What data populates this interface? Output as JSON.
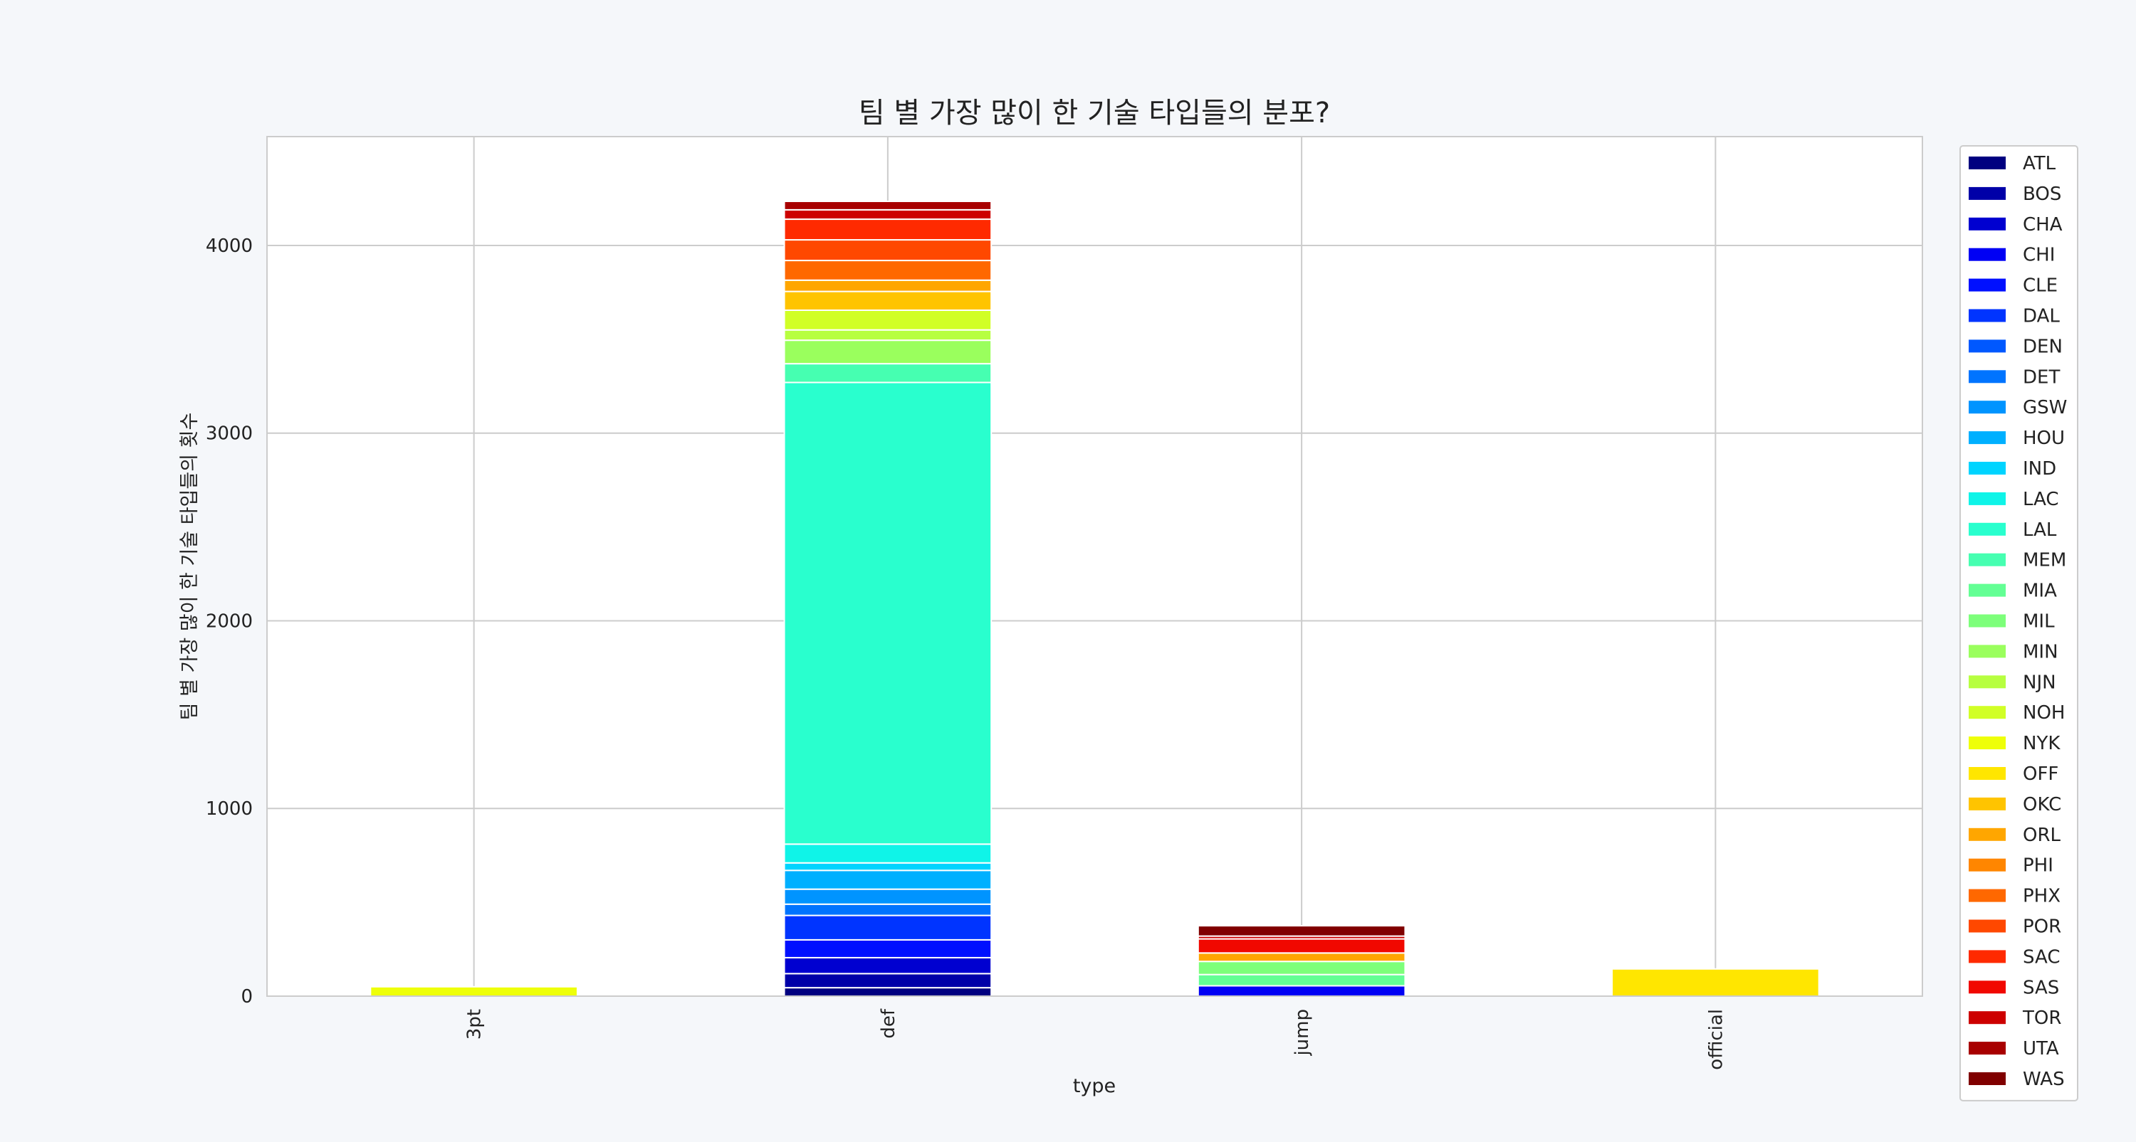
{
  "chart_data": {
    "type": "bar",
    "stacked": true,
    "title": "팀 별 가장 많이 한 기술 타입들의 분포?",
    "xlabel": "type",
    "ylabel": "팀 별 가장 많이 한 기술 타입들의 횟수",
    "categories": [
      "3pt",
      "def",
      "jump",
      "official"
    ],
    "ylim": [
      0,
      4580
    ],
    "yticks": [
      0,
      1000,
      2000,
      3000,
      4000
    ],
    "grid": true,
    "legend": "right",
    "series": [
      {
        "name": "ATL",
        "color": "#000080",
        "values": [
          0,
          45,
          0,
          0
        ]
      },
      {
        "name": "BOS",
        "color": "#0000a8",
        "values": [
          0,
          75,
          0,
          0
        ]
      },
      {
        "name": "CHA",
        "color": "#0000d0",
        "values": [
          0,
          85,
          0,
          0
        ]
      },
      {
        "name": "CHI",
        "color": "#0000f4",
        "values": [
          0,
          0,
          55,
          0
        ]
      },
      {
        "name": "CLE",
        "color": "#0010ff",
        "values": [
          0,
          95,
          0,
          0
        ]
      },
      {
        "name": "DAL",
        "color": "#0034ff",
        "values": [
          0,
          130,
          0,
          0
        ]
      },
      {
        "name": "DEN",
        "color": "#0058ff",
        "values": [
          0,
          0,
          0,
          0
        ]
      },
      {
        "name": "DET",
        "color": "#0074ff",
        "values": [
          0,
          60,
          0,
          0
        ]
      },
      {
        "name": "GSW",
        "color": "#0094ff",
        "values": [
          0,
          80,
          0,
          0
        ]
      },
      {
        "name": "HOU",
        "color": "#00b0ff",
        "values": [
          0,
          100,
          0,
          0
        ]
      },
      {
        "name": "IND",
        "color": "#00d4ff",
        "values": [
          0,
          40,
          0,
          0
        ]
      },
      {
        "name": "LAC",
        "color": "#0ff4e8",
        "values": [
          0,
          100,
          0,
          0
        ]
      },
      {
        "name": "LAL",
        "color": "#29ffce",
        "values": [
          0,
          2460,
          0,
          0
        ]
      },
      {
        "name": "MEM",
        "color": "#46ffb1",
        "values": [
          0,
          100,
          0,
          0
        ]
      },
      {
        "name": "MIA",
        "color": "#63ff94",
        "values": [
          0,
          0,
          60,
          0
        ]
      },
      {
        "name": "MIL",
        "color": "#7dff7a",
        "values": [
          0,
          0,
          70,
          0
        ]
      },
      {
        "name": "MIN",
        "color": "#9aff5d",
        "values": [
          0,
          125,
          0,
          0
        ]
      },
      {
        "name": "NJN",
        "color": "#b7ff40",
        "values": [
          0,
          55,
          0,
          0
        ]
      },
      {
        "name": "NOH",
        "color": "#d1ff26",
        "values": [
          0,
          105,
          0,
          0
        ]
      },
      {
        "name": "NYK",
        "color": "#eeff09",
        "values": [
          50,
          0,
          0,
          0
        ]
      },
      {
        "name": "OFF",
        "color": "#ffe600",
        "values": [
          0,
          0,
          0,
          145
        ]
      },
      {
        "name": "OKC",
        "color": "#ffc400",
        "values": [
          0,
          100,
          0,
          0
        ]
      },
      {
        "name": "ORL",
        "color": "#ffa600",
        "values": [
          0,
          60,
          45,
          0
        ]
      },
      {
        "name": "PHI",
        "color": "#ff8600",
        "values": [
          0,
          0,
          0,
          0
        ]
      },
      {
        "name": "PHX",
        "color": "#ff6800",
        "values": [
          0,
          105,
          0,
          0
        ]
      },
      {
        "name": "POR",
        "color": "#ff4800",
        "values": [
          0,
          110,
          0,
          0
        ]
      },
      {
        "name": "SAC",
        "color": "#ff2a00",
        "values": [
          0,
          110,
          0,
          0
        ]
      },
      {
        "name": "SAS",
        "color": "#f10800",
        "values": [
          0,
          0,
          75,
          0
        ]
      },
      {
        "name": "TOR",
        "color": "#cd0000",
        "values": [
          0,
          50,
          15,
          0
        ]
      },
      {
        "name": "UTA",
        "color": "#a80000",
        "values": [
          0,
          45,
          0,
          0
        ]
      },
      {
        "name": "WAS",
        "color": "#800000",
        "values": [
          0,
          0,
          55,
          0
        ]
      }
    ]
  }
}
